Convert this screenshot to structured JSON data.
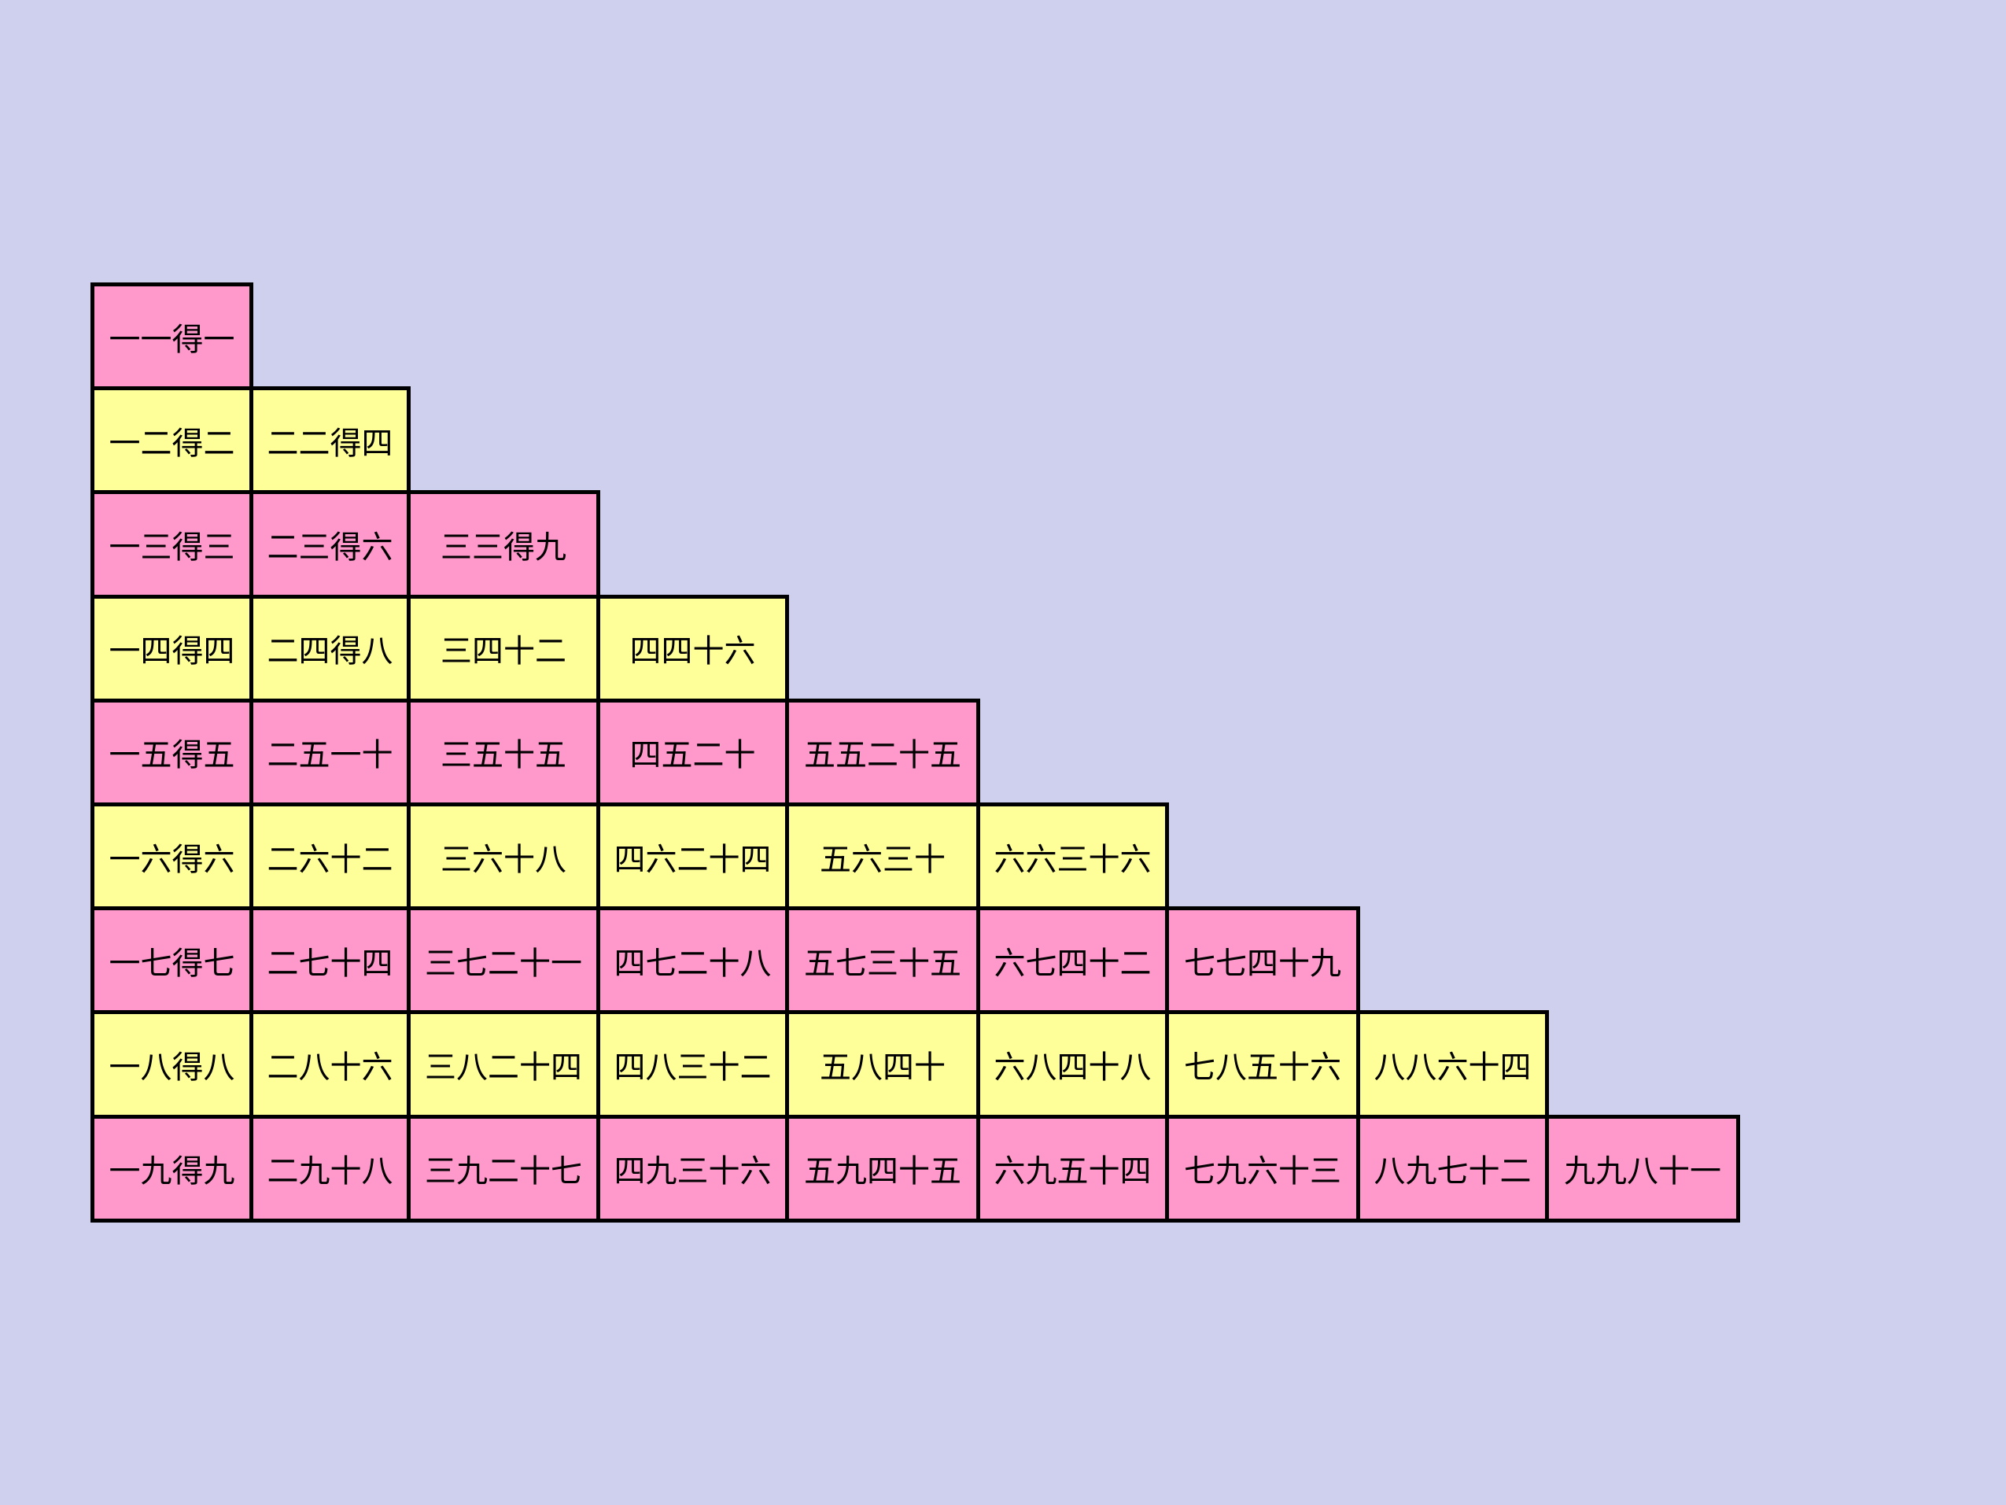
{
  "table": {
    "rows": [
      [
        "一一得一"
      ],
      [
        "一二得二",
        "二二得四"
      ],
      [
        "一三得三",
        "二三得六",
        "三三得九"
      ],
      [
        "一四得四",
        "二四得八",
        "三四十二",
        "四四十六"
      ],
      [
        "一五得五",
        "二五一十",
        "三五十五",
        "四五二十",
        "五五二十五"
      ],
      [
        "一六得六",
        "二六十二",
        "三六十八",
        "四六二十四",
        "五六三十",
        "六六三十六"
      ],
      [
        "一七得七",
        "二七十四",
        "三七二十一",
        "四七二十八",
        "五七三十五",
        "六七四十二",
        "七七四十九"
      ],
      [
        "一八得八",
        "二八十六",
        "三八二十四",
        "四八三十二",
        "五八四十",
        "六八四十八",
        "七八五十六",
        "八八六十四"
      ],
      [
        "一九得九",
        "二九十八",
        "三九二十七",
        "四九三十六",
        "五九四十五",
        "六九五十四",
        "七九六十三",
        "八九七十二",
        "九九八十一"
      ]
    ]
  }
}
